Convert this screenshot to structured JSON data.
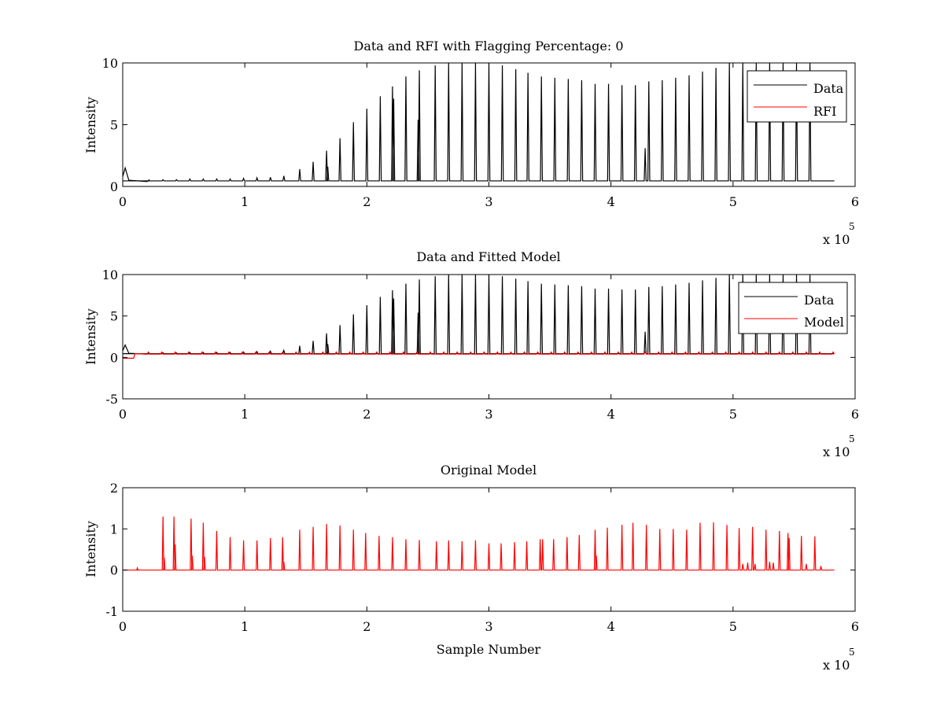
{
  "chart_data": [
    {
      "type": "line",
      "title": "Data and RFI with Flagging Percentage: 0",
      "xlabel": "",
      "ylabel": "Intensity",
      "xlim": [
        0,
        6
      ],
      "ylim": [
        0,
        10
      ],
      "x_multiplier_label": "x 10",
      "x_multiplier_exponent": "5",
      "xticks": [
        0,
        1,
        2,
        3,
        4,
        5,
        6
      ],
      "yticks": [
        0,
        5,
        10
      ],
      "legend_position": "top-right",
      "series": [
        {
          "name": "Data",
          "color": "#000000",
          "baseline": 0.45,
          "peaks": [
            [
              0.33,
              0.55
            ],
            [
              0.44,
              0.55
            ],
            [
              0.55,
              0.6
            ],
            [
              0.66,
              0.6
            ],
            [
              0.77,
              0.6
            ],
            [
              0.88,
              0.6
            ],
            [
              0.99,
              0.65
            ],
            [
              1.1,
              0.7
            ],
            [
              1.21,
              0.75
            ],
            [
              1.32,
              0.85
            ],
            [
              1.45,
              1.4
            ],
            [
              1.56,
              2.0
            ],
            [
              1.67,
              2.9
            ],
            [
              1.78,
              3.9
            ],
            [
              1.89,
              5.2
            ],
            [
              2.0,
              6.3
            ],
            [
              2.11,
              7.3
            ],
            [
              2.21,
              8.1
            ],
            [
              2.32,
              8.9
            ],
            [
              2.43,
              9.4
            ],
            [
              2.56,
              9.8
            ],
            [
              2.67,
              10
            ],
            [
              2.78,
              10
            ],
            [
              2.89,
              10
            ],
            [
              3.0,
              10
            ],
            [
              3.11,
              9.8
            ],
            [
              3.22,
              9.5
            ],
            [
              3.32,
              9.2
            ],
            [
              3.43,
              8.9
            ],
            [
              3.54,
              8.8
            ],
            [
              3.65,
              8.7
            ],
            [
              3.76,
              8.6
            ],
            [
              3.87,
              8.3
            ],
            [
              3.98,
              8.3
            ],
            [
              4.09,
              8.2
            ],
            [
              4.2,
              8.2
            ],
            [
              4.31,
              8.5
            ],
            [
              4.42,
              8.6
            ],
            [
              4.53,
              8.8
            ],
            [
              4.64,
              9.0
            ],
            [
              4.75,
              9.3
            ],
            [
              4.86,
              9.6
            ],
            [
              4.97,
              10
            ],
            [
              5.08,
              10
            ],
            [
              5.19,
              10
            ],
            [
              5.3,
              10
            ],
            [
              5.41,
              10
            ],
            [
              5.52,
              10
            ],
            [
              5.63,
              10
            ]
          ],
          "secondary_peaks": [
            [
              1.68,
              1.6
            ],
            [
              2.22,
              7.1
            ],
            [
              2.42,
              5.4
            ],
            [
              4.28,
              3.1
            ]
          ]
        },
        {
          "name": "RFI",
          "color": "#ff0000",
          "values": []
        }
      ]
    },
    {
      "type": "line",
      "title": "Data and Fitted Model",
      "xlabel": "",
      "ylabel": "Intensity",
      "xlim": [
        0,
        6
      ],
      "ylim": [
        -5,
        10
      ],
      "x_multiplier_label": "x 10",
      "x_multiplier_exponent": "5",
      "xticks": [
        0,
        1,
        2,
        3,
        4,
        5,
        6
      ],
      "yticks": [
        -5,
        0,
        5,
        10
      ],
      "legend_position": "top-right",
      "series": [
        {
          "name": "Data",
          "color": "#000000"
        },
        {
          "name": "Model",
          "color": "#ff0000",
          "baseline": 0.45
        }
      ]
    },
    {
      "type": "line",
      "title": "Original Model",
      "xlabel": "Sample Number",
      "ylabel": "Intensity",
      "xlim": [
        0,
        6
      ],
      "ylim": [
        -1,
        2
      ],
      "x_multiplier_label": "x 10",
      "x_multiplier_exponent": "5",
      "xticks": [
        0,
        1,
        2,
        3,
        4,
        5,
        6
      ],
      "yticks": [
        -1,
        0,
        1,
        2
      ],
      "series": [
        {
          "name": "",
          "color": "#ff0000",
          "baseline": 0,
          "peaks": [
            [
              0.33,
              1.3
            ],
            [
              0.42,
              1.3
            ],
            [
              0.56,
              1.25
            ],
            [
              0.66,
              1.15
            ],
            [
              0.77,
              0.95
            ],
            [
              0.88,
              0.8
            ],
            [
              0.99,
              0.72
            ],
            [
              1.1,
              0.72
            ],
            [
              1.21,
              0.78
            ],
            [
              1.31,
              0.8
            ],
            [
              1.45,
              0.98
            ],
            [
              1.56,
              1.05
            ],
            [
              1.67,
              1.12
            ],
            [
              1.78,
              1.08
            ],
            [
              1.89,
              0.98
            ],
            [
              1.99,
              0.9
            ],
            [
              2.1,
              0.83
            ],
            [
              2.21,
              0.8
            ],
            [
              2.32,
              0.75
            ],
            [
              2.43,
              0.73
            ],
            [
              2.57,
              0.7
            ],
            [
              2.67,
              0.72
            ],
            [
              2.78,
              0.7
            ],
            [
              2.89,
              0.72
            ],
            [
              3.0,
              0.65
            ],
            [
              3.1,
              0.65
            ],
            [
              3.21,
              0.68
            ],
            [
              3.31,
              0.7
            ],
            [
              3.42,
              0.75
            ],
            [
              3.53,
              0.75
            ],
            [
              3.64,
              0.8
            ],
            [
              3.74,
              0.85
            ],
            [
              3.87,
              0.98
            ],
            [
              3.97,
              1.03
            ],
            [
              4.09,
              1.1
            ],
            [
              4.18,
              1.15
            ],
            [
              4.29,
              1.1
            ],
            [
              4.4,
              1.0
            ],
            [
              4.51,
              1.0
            ],
            [
              4.62,
              0.98
            ],
            [
              4.73,
              1.15
            ],
            [
              4.84,
              1.16
            ],
            [
              4.95,
              1.1
            ],
            [
              5.05,
              1.02
            ],
            [
              5.16,
              1.05
            ],
            [
              5.27,
              0.98
            ],
            [
              5.38,
              0.95
            ],
            [
              5.45,
              0.9
            ],
            [
              5.56,
              0.83
            ],
            [
              5.67,
              0.82
            ]
          ],
          "secondary_peaks": [
            [
              0.34,
              0.3
            ],
            [
              0.43,
              0.62
            ],
            [
              0.57,
              0.35
            ],
            [
              0.67,
              0.32
            ],
            [
              1.32,
              0.2
            ],
            [
              3.44,
              0.75
            ],
            [
              3.88,
              0.35
            ],
            [
              5.08,
              0.15
            ],
            [
              5.12,
              0.18
            ],
            [
              5.18,
              0.15
            ],
            [
              5.3,
              0.2
            ],
            [
              5.33,
              0.18
            ],
            [
              5.46,
              0.78
            ],
            [
              5.6,
              0.15
            ],
            [
              5.72,
              0.1
            ]
          ]
        }
      ]
    }
  ]
}
